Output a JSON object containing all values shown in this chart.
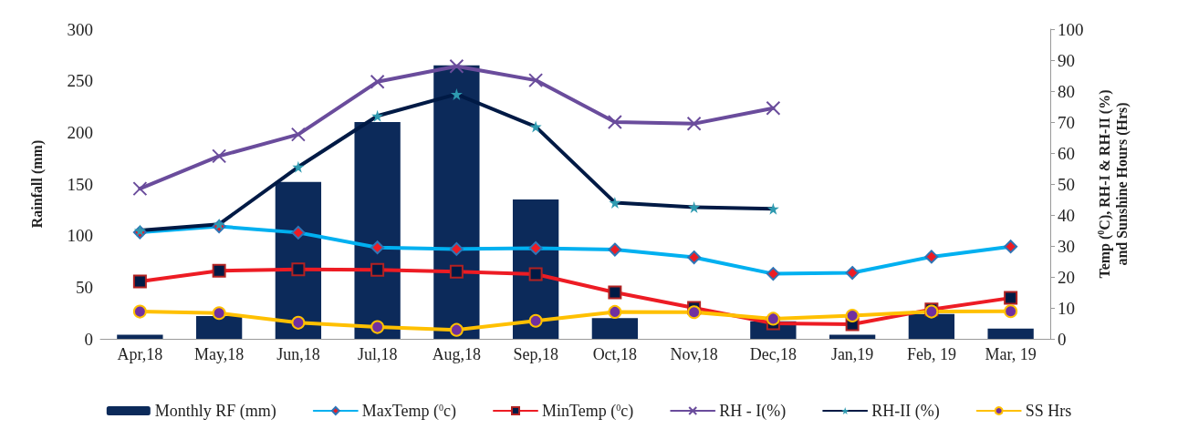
{
  "chart_data": {
    "type": "bar",
    "categories": [
      "Apr,18",
      "May,18",
      "Jun,18",
      "Jul,18",
      "Aug,18",
      "Sep,18",
      "Oct,18",
      "Nov,18",
      "Dec,18",
      "Jan,19",
      "Feb, 19",
      "Mar, 19"
    ],
    "ylabel": "Rainfall (mm)",
    "y2label": "Temp ($^{0}$C), RH-I & RH-II (%) and Sunshine Hours (Hrs)",
    "ylim": [
      0,
      300
    ],
    "yticks": [
      0,
      50,
      100,
      150,
      200,
      250,
      300
    ],
    "y2lim": [
      0,
      100
    ],
    "y2ticks": [
      0,
      10,
      20,
      30,
      40,
      50,
      60,
      70,
      80,
      90,
      100
    ],
    "grid": false,
    "legend": "bottom",
    "series": [
      {
        "name": "Monthly RF (mm)",
        "color": "#0c2a5a",
        "values": [
          4,
          22,
          152,
          210,
          265,
          135,
          20,
          0,
          17,
          4,
          24,
          10
        ]
      },
      {
        "name": "MaxTemp ($^{0}$c)",
        "type": "line",
        "axis": "y2",
        "color": "#00b0f0",
        "marker": "diamond",
        "values": [
          34.4,
          36.3,
          34.3,
          29.5,
          29,
          29.3,
          28.8,
          26.3,
          21,
          21.3,
          26.5,
          29.8
        ]
      },
      {
        "name": "MinTemp ($^{0}$c)",
        "type": "line",
        "axis": "y2",
        "color": "#ed1c24",
        "marker": "square",
        "values": [
          18.5,
          22,
          22.4,
          22.3,
          21.7,
          20.9,
          15,
          10,
          5,
          4.7,
          9.5,
          13.2
        ]
      },
      {
        "name": "RH - I(%)",
        "type": "line",
        "axis": "y2",
        "color": "#6a4c9c",
        "marker": "cross",
        "values": [
          48.5,
          59,
          66,
          83,
          88,
          83.5,
          70,
          69.5,
          74.5,
          null,
          null,
          null
        ]
      },
      {
        "name": "RH-II (%)",
        "type": "line",
        "axis": "y2",
        "color": "#001a45",
        "marker": "star",
        "values": [
          35,
          37,
          55.5,
          72,
          79,
          68.5,
          44,
          42.5,
          42,
          null,
          null,
          null
        ]
      },
      {
        "name": "SS Hrs",
        "type": "line",
        "axis": "y2",
        "color": "#ffc000",
        "marker": "circle",
        "values": [
          8.8,
          8.3,
          5.2,
          3.8,
          2.9,
          5.8,
          8.7,
          8.6,
          6.5,
          7.5,
          8.8,
          8.9
        ]
      }
    ]
  }
}
